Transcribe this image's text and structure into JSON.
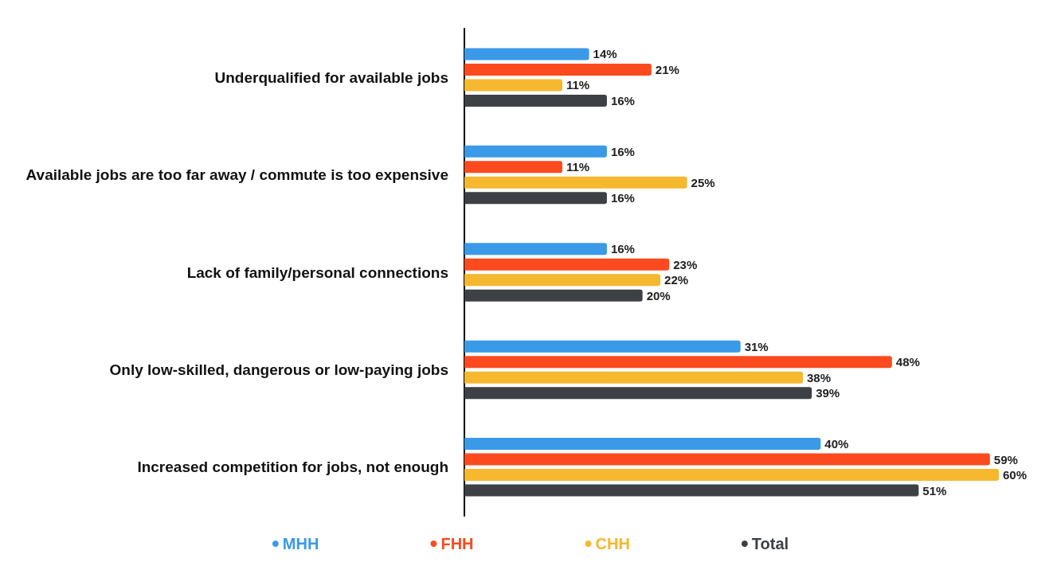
{
  "chart_data": {
    "type": "bar",
    "orientation": "horizontal",
    "categories": [
      "Underqualified for available jobs",
      "Available jobs are too far away / commute is too expensive",
      "Lack of family/personal connections",
      "Only low-skilled, dangerous or low-paying jobs",
      "Increased competition for jobs, not enough"
    ],
    "series": [
      {
        "name": "MHH",
        "color": "#3a9ae8",
        "values": [
          14,
          16,
          16,
          31,
          40
        ],
        "value_labels": [
          "14%",
          "16%",
          "16%",
          "31%",
          "40%"
        ]
      },
      {
        "name": "FHH",
        "color": "#fc4a1f",
        "values": [
          21,
          11,
          23,
          48,
          59
        ],
        "value_labels": [
          "21%",
          "11%",
          "23%",
          "48%",
          "59%"
        ]
      },
      {
        "name": "CHH",
        "color": "#f5b82e",
        "values": [
          11,
          25,
          22,
          38,
          60
        ],
        "value_labels": [
          "11%",
          "25%",
          "22%",
          "38%",
          "60%"
        ]
      },
      {
        "name": "Total",
        "color": "#3d4045",
        "values": [
          16,
          16,
          20,
          39,
          51
        ],
        "value_labels": [
          "16%",
          "16%",
          "20%",
          "39%",
          "51%"
        ]
      }
    ],
    "tick_labels": "y",
    "legend": "bottom"
  }
}
